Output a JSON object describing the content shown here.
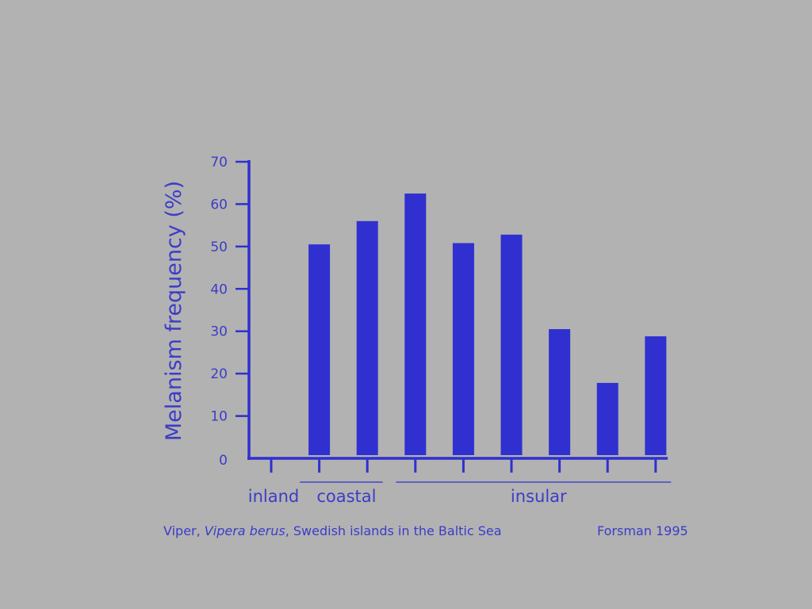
{
  "colors": {
    "background": "#b2b2b2",
    "bar": "#3030d0",
    "axis": "#3030d0",
    "text": "#3c3cc8"
  },
  "caption": {
    "species_common": "Viper, ",
    "species_latin": "Vipera berus",
    "location": ", Swedish islands in the Baltic Sea",
    "source": "Forsman 1995"
  },
  "chart_data": {
    "type": "bar",
    "title": "",
    "xlabel": "",
    "ylabel": "Melanism frequency (%)",
    "ylim": [
      0,
      70
    ],
    "yticks": [
      0,
      10,
      20,
      30,
      40,
      50,
      60,
      70
    ],
    "grid": false,
    "values": [
      0,
      50.5,
      56,
      62.5,
      50.8,
      52.8,
      30.5,
      17.8,
      28.8
    ],
    "groups": [
      {
        "label": "inland",
        "start": 0,
        "end": 0,
        "underline": false
      },
      {
        "label": "coastal",
        "start": 1,
        "end": 2,
        "underline": true
      },
      {
        "label": "insular",
        "start": 3,
        "end": 8,
        "underline": true
      }
    ]
  }
}
